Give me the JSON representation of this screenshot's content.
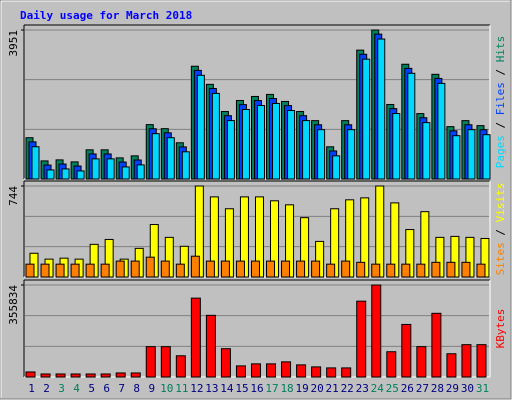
{
  "chart_data": {
    "title": "Daily usage for March 2018",
    "categories": [
      "1",
      "2",
      "3",
      "4",
      "5",
      "6",
      "7",
      "8",
      "9",
      "10",
      "11",
      "12",
      "13",
      "14",
      "15",
      "16",
      "17",
      "18",
      "19",
      "20",
      "21",
      "22",
      "23",
      "24",
      "25",
      "26",
      "27",
      "28",
      "29",
      "30",
      "31"
    ],
    "category_colors": [
      "#000080",
      "#000080",
      "#00805c",
      "#00805c",
      "#000080",
      "#000080",
      "#000080",
      "#000080",
      "#000080",
      "#00805c",
      "#00805c",
      "#000080",
      "#000080",
      "#000080",
      "#000080",
      "#000080",
      "#00805c",
      "#00805c",
      "#000080",
      "#000080",
      "#000080",
      "#000080",
      "#000080",
      "#00805c",
      "#00805c",
      "#000080",
      "#000080",
      "#000080",
      "#000080",
      "#000080",
      "#00805c"
    ],
    "legend_separator": " / ",
    "panels": [
      {
        "type": "bar",
        "ylim": [
          0,
          3951
        ],
        "yticks": [
          3951
        ],
        "grid": true,
        "series": [
          {
            "name": "Hits",
            "color": "#00805c",
            "values": [
              1095,
              480,
              507,
              454,
              774,
              774,
              560,
              614,
              1442,
              1335,
              961,
              2990,
              2510,
              1789,
              2082,
              2189,
              2243,
              2056,
              1789,
              1548,
              854,
              1548,
              3417,
              3951,
              1976,
              3043,
              1735,
              2776,
              1388,
              1548,
              1415
            ]
          },
          {
            "name": "Files",
            "color": "#0040ff",
            "values": [
              985,
              370,
              397,
              344,
              664,
              664,
              450,
              504,
              1332,
              1225,
              851,
              2880,
              2400,
              1679,
              1972,
              2079,
              2133,
              1946,
              1679,
              1438,
              744,
              1438,
              3307,
              3841,
              1866,
              2933,
              1625,
              2666,
              1278,
              1438,
              1305
            ]
          },
          {
            "name": "Pages",
            "color": "#00d8ff",
            "values": [
              855,
              240,
              267,
              214,
              534,
              534,
              320,
              374,
              1202,
              1095,
              721,
              2750,
              2270,
              1549,
              1842,
              1949,
              2003,
              1816,
              1549,
              1308,
              614,
              1308,
              3177,
              3711,
              1736,
              2803,
              1495,
              2536,
              1148,
              1308,
              1175
            ]
          }
        ]
      },
      {
        "type": "bar",
        "ylim": [
          0,
          744
        ],
        "yticks": [
          744
        ],
        "grid": true,
        "series": [
          {
            "name": "Visits",
            "color": "#ffff00",
            "values": [
              194,
              146,
              154,
              146,
              267,
              307,
              146,
              234,
              429,
              324,
              251,
              744,
              655,
              558,
              655,
              655,
              623,
              590,
              485,
              291,
              558,
              631,
              647,
              744,
              606,
              388,
              534,
              324,
              332,
              324,
              315
            ]
          },
          {
            "name": "Sites",
            "color": "#ff8000",
            "values": [
              105,
              105,
              105,
              105,
              105,
              105,
              130,
              130,
              162,
              130,
              105,
              170,
              130,
              130,
              130,
              130,
              130,
              130,
              130,
              130,
              105,
              130,
              120,
              105,
              105,
              105,
              105,
              120,
              120,
              120,
              105
            ]
          }
        ]
      },
      {
        "type": "bar",
        "ylim": [
          0,
          355834
        ],
        "yticks": [
          355834
        ],
        "grid": true,
        "series": [
          {
            "name": "KBytes",
            "color": "#ff0000",
            "values": [
              19552,
              11730,
              11730,
              11730,
              11730,
              11730,
              15640,
              15640,
              117308,
              117308,
              82115,
              305000,
              238525,
              109488,
              43013,
              50833,
              50833,
              58654,
              46923,
              39103,
              35192,
              35192,
              293270,
              355834,
              97757,
              203333,
              117308,
              246345,
              89936,
              125129,
              125129
            ]
          }
        ]
      }
    ]
  }
}
